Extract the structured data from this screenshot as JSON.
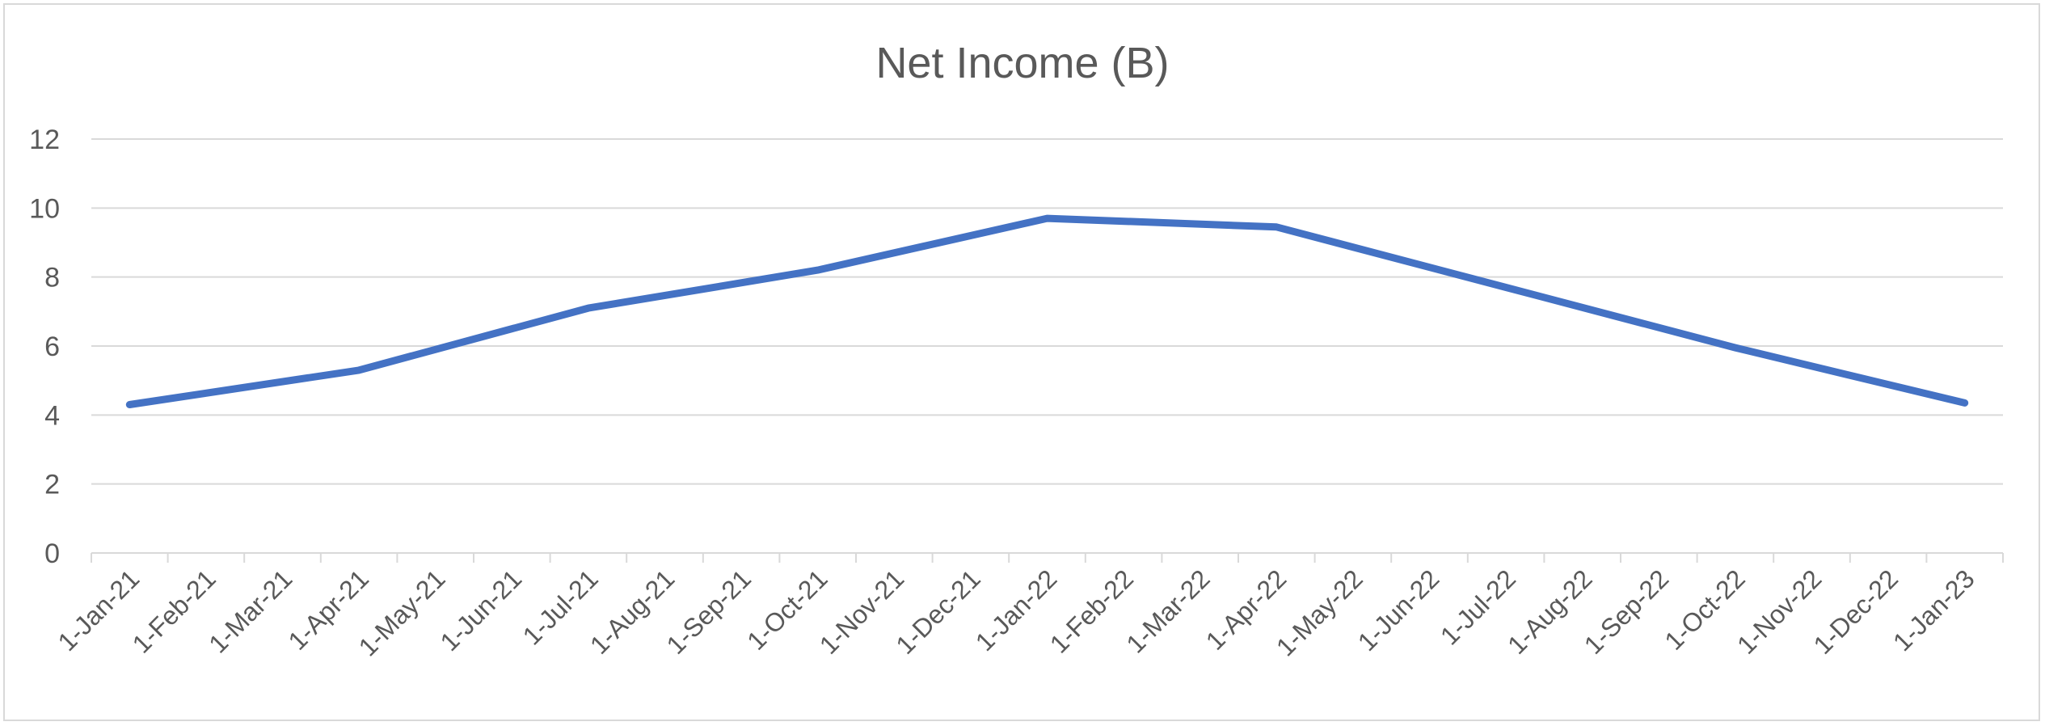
{
  "chart_data": {
    "type": "line",
    "title": "Net Income (B)",
    "xlabel": "",
    "ylabel": "",
    "ylim": [
      0,
      12
    ],
    "yticks": [
      "0",
      "2",
      "4",
      "6",
      "8",
      "10",
      "12"
    ],
    "grid": true,
    "legend": "none",
    "categories": [
      "1-Jan-21",
      "1-Feb-21",
      "1-Mar-21",
      "1-Apr-21",
      "1-May-21",
      "1-Jun-21",
      "1-Jul-21",
      "1-Aug-21",
      "1-Sep-21",
      "1-Oct-21",
      "1-Nov-21",
      "1-Dec-21",
      "1-Jan-22",
      "1-Feb-22",
      "1-Mar-22",
      "1-Apr-22",
      "1-May-22",
      "1-Jun-22",
      "1-Jul-22",
      "1-Aug-22",
      "1-Sep-22",
      "1-Oct-22",
      "1-Nov-22",
      "1-Dec-22",
      "1-Jan-23"
    ],
    "series": [
      {
        "color": "#4472C4",
        "points": [
          {
            "x": "1-Jan-21",
            "y": 4.3
          },
          {
            "x": "1-Apr-21",
            "y": 5.3
          },
          {
            "x": "1-Jul-21",
            "y": 7.1
          },
          {
            "x": "1-Oct-21",
            "y": 8.2
          },
          {
            "x": "1-Jan-22",
            "y": 9.7
          },
          {
            "x": "1-Apr-22",
            "y": 9.45
          },
          {
            "x": "1-Jul-22",
            "y": 7.7
          },
          {
            "x": "1-Oct-22",
            "y": 5.95
          },
          {
            "x": "1-Jan-23",
            "y": 4.35
          }
        ]
      }
    ]
  },
  "colors": {
    "gridline": "#d9d9d9",
    "text": "#595959",
    "line": "#4472C4"
  }
}
